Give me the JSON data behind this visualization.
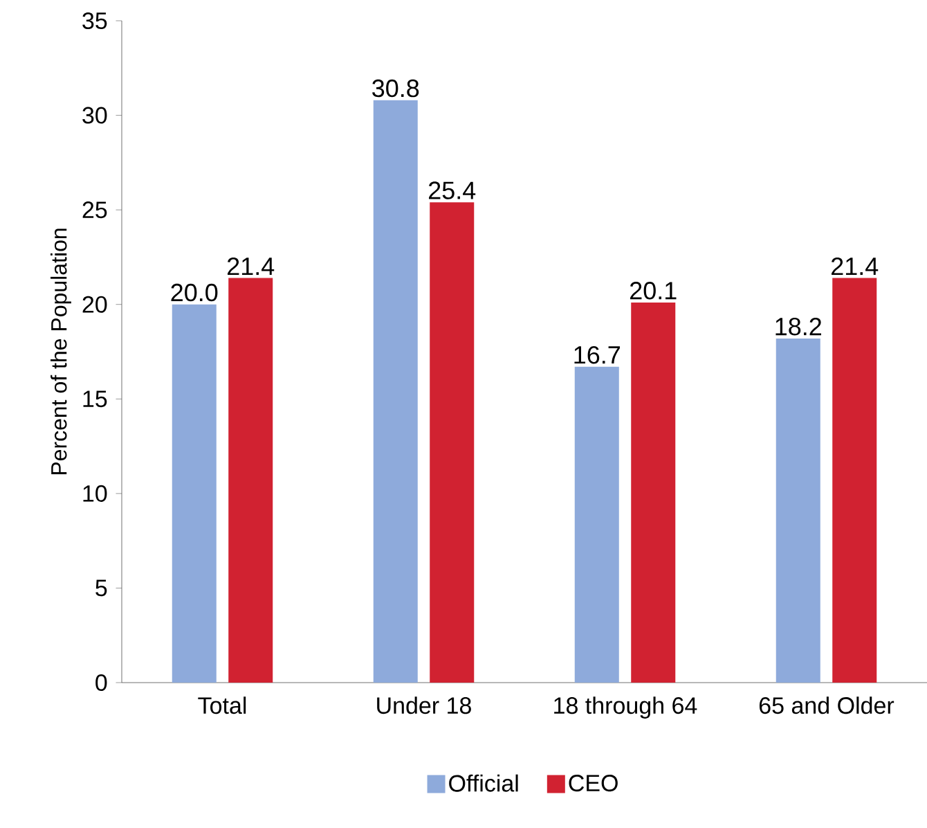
{
  "chart_data": {
    "type": "bar",
    "ylabel": "Percent of the Population",
    "categories": [
      "Total",
      "Under 18",
      "18 through 64",
      "65 and Older"
    ],
    "series": [
      {
        "name": "Official",
        "color": "#8eaadb",
        "values": [
          20.0,
          30.8,
          16.7,
          18.2
        ],
        "value_labels": [
          "20.0",
          "30.8",
          "16.7",
          "18.2"
        ]
      },
      {
        "name": "CEO",
        "color": "#d12231",
        "values": [
          21.4,
          25.4,
          20.1,
          21.4
        ],
        "value_labels": [
          "21.4",
          "25.4",
          "20.1",
          "21.4"
        ]
      }
    ],
    "ylim": [
      0,
      35
    ],
    "yticks": [
      0,
      5,
      10,
      15,
      20,
      25,
      30,
      35
    ],
    "grid": false,
    "legend": "bottom"
  }
}
